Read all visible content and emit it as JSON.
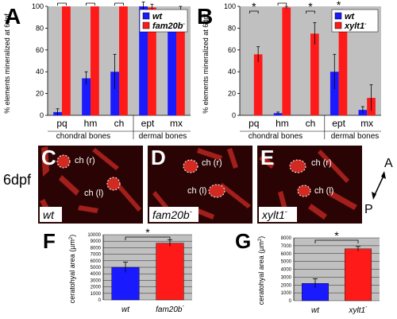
{
  "colors": {
    "wt": "#1a1aff",
    "mutant": "#ff1a1a",
    "plot_bg": "#c0c0c0",
    "panel_bg": "#ffffff",
    "image_bg": "#2a0404",
    "tissue": "#b82420"
  },
  "panels": {
    "A": {
      "letter": "A"
    },
    "B": {
      "letter": "B"
    },
    "C": {
      "letter": "C",
      "genotype": "wt",
      "label_r": "ch (r)",
      "label_l": "ch (l)"
    },
    "D": {
      "letter": "D",
      "genotype": "fam20b",
      "genotype_sup": "-",
      "label_r": "ch (r)",
      "label_l": "ch (l)"
    },
    "E": {
      "letter": "E",
      "genotype": "xylt1",
      "genotype_sup": "-",
      "label_r": "ch (r)",
      "label_l": "ch (l)"
    },
    "F": {
      "letter": "F"
    },
    "G": {
      "letter": "G"
    }
  },
  "stage_label": "6dpf",
  "orientation": {
    "anterior": "A",
    "posterior": "P"
  },
  "chart_data": [
    {
      "panel": "A",
      "type": "bar",
      "ylabel": "% elements mineralized at 6dpf",
      "ylim": [
        0,
        100
      ],
      "yticks": [
        0,
        20,
        40,
        60,
        80,
        100
      ],
      "categories": [
        "pq",
        "hm",
        "ch",
        "ept",
        "mx"
      ],
      "groups": [
        {
          "label": "chondral bones",
          "categories": [
            "pq",
            "hm",
            "ch"
          ]
        },
        {
          "label": "dermal bones",
          "categories": [
            "ept",
            "mx"
          ]
        }
      ],
      "series": [
        {
          "name": "wt",
          "sup": "",
          "values": [
            3,
            34,
            40,
            100,
            84
          ],
          "errors": [
            3,
            6,
            16,
            4,
            6
          ]
        },
        {
          "name": "fam20b",
          "sup": "-",
          "values": [
            100,
            100,
            100,
            99,
            89
          ],
          "errors": [
            0,
            0,
            0,
            3,
            11
          ]
        }
      ],
      "significance": [
        {
          "category": "pq",
          "label": "*"
        },
        {
          "category": "hm",
          "label": "*"
        },
        {
          "category": "ch",
          "label": "*"
        }
      ],
      "legend": "top-right"
    },
    {
      "panel": "B",
      "type": "bar",
      "ylabel": "% elements mineralized at 6dpf",
      "ylim": [
        0,
        100
      ],
      "yticks": [
        0,
        20,
        40,
        60,
        80,
        100
      ],
      "categories": [
        "pq",
        "hm",
        "ch",
        "ept",
        "mx"
      ],
      "groups": [
        {
          "label": "chondral bones",
          "categories": [
            "pq",
            "hm",
            "ch"
          ]
        },
        {
          "label": "dermal bones",
          "categories": [
            "ept",
            "mx"
          ]
        }
      ],
      "series": [
        {
          "name": "wt",
          "sup": "",
          "values": [
            0,
            2,
            0,
            40,
            5
          ],
          "errors": [
            0,
            1,
            0,
            16,
            3
          ]
        },
        {
          "name": "xylt1",
          "sup": "-",
          "values": [
            56,
            99,
            75,
            90,
            16
          ],
          "errors": [
            7,
            1,
            10,
            4,
            12
          ]
        }
      ],
      "significance": [
        {
          "category": "pq",
          "label": "*"
        },
        {
          "category": "hm",
          "label": "*"
        },
        {
          "category": "ch",
          "label": "*"
        },
        {
          "category": "ept",
          "label": "*"
        }
      ],
      "legend": "top-right"
    },
    {
      "panel": "F",
      "type": "bar",
      "ylabel": "ceratohyal area (µm",
      "ylabel_sup": "2",
      "ylabel_end": ")",
      "ylim": [
        0,
        10000
      ],
      "yticks": [
        0,
        1000,
        2000,
        3000,
        4000,
        5000,
        6000,
        7000,
        8000,
        9000,
        10000
      ],
      "categories": [
        "wt",
        "fam20b"
      ],
      "category_sups": [
        "",
        "-"
      ],
      "values": [
        5000,
        8700
      ],
      "errors": [
        800,
        500
      ],
      "colors": [
        "#1a1aff",
        "#ff1a1a"
      ],
      "significance": {
        "label": "*"
      }
    },
    {
      "panel": "G",
      "type": "bar",
      "ylabel": "ceratohyal area (µm",
      "ylabel_sup": "2",
      "ylabel_end": ")",
      "ylim": [
        0,
        8000
      ],
      "yticks": [
        0,
        1000,
        2000,
        3000,
        4000,
        5000,
        6000,
        7000,
        8000
      ],
      "categories": [
        "wt",
        "xylt1"
      ],
      "category_sups": [
        "",
        "-"
      ],
      "values": [
        2200,
        6600
      ],
      "errors": [
        600,
        300
      ],
      "colors": [
        "#1a1aff",
        "#ff1a1a"
      ],
      "significance": {
        "label": "*"
      }
    }
  ]
}
